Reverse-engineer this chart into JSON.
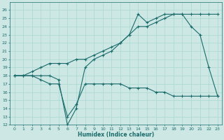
{
  "xlabel": "Humidex (Indice chaleur)",
  "xlim": [
    -0.5,
    23.5
  ],
  "ylim": [
    12,
    27
  ],
  "yticks": [
    12,
    13,
    14,
    15,
    16,
    17,
    18,
    19,
    20,
    21,
    22,
    23,
    24,
    25,
    26
  ],
  "xticks": [
    0,
    1,
    2,
    3,
    4,
    5,
    6,
    7,
    8,
    9,
    10,
    11,
    12,
    13,
    14,
    15,
    16,
    17,
    18,
    19,
    20,
    21,
    22,
    23
  ],
  "bg_color": "#cde8e4",
  "line_color": "#1a6b6b",
  "grid_color": "#aad8d0",
  "line1_x": [
    0,
    1,
    2,
    3,
    4,
    5,
    6,
    7,
    8,
    9,
    10,
    11,
    12,
    13,
    14,
    15,
    16,
    17,
    18,
    19,
    20,
    21,
    22,
    23
  ],
  "line1_y": [
    18,
    18,
    18,
    17.5,
    17,
    17,
    13,
    14.5,
    17,
    17,
    17,
    17,
    17,
    16.5,
    16.5,
    16.5,
    16,
    16,
    15.5,
    15.5,
    15.5,
    15.5,
    15.5,
    15.5
  ],
  "line2_x": [
    0,
    1,
    2,
    3,
    4,
    5,
    6,
    7,
    8,
    9,
    10,
    11,
    12,
    13,
    14,
    15,
    16,
    17,
    18,
    19,
    20,
    21,
    22,
    23
  ],
  "line2_y": [
    18,
    18,
    18,
    18,
    18,
    17.5,
    12,
    14,
    19,
    20,
    20.5,
    21,
    22,
    23,
    25.5,
    24.5,
    25,
    25.5,
    25.5,
    25.5,
    24,
    23,
    19,
    15.5
  ],
  "line3_x": [
    0,
    1,
    2,
    3,
    4,
    5,
    6,
    7,
    8,
    9,
    10,
    11,
    12,
    13,
    14,
    15,
    16,
    17,
    18,
    19,
    20,
    21,
    22,
    23
  ],
  "line3_y": [
    18,
    18,
    18.5,
    19,
    19.5,
    19.5,
    19.5,
    20,
    20,
    20.5,
    21,
    21.5,
    22,
    23,
    24,
    24,
    24.5,
    25,
    25.5,
    25.5,
    25.5,
    25.5,
    25.5,
    25.5
  ]
}
